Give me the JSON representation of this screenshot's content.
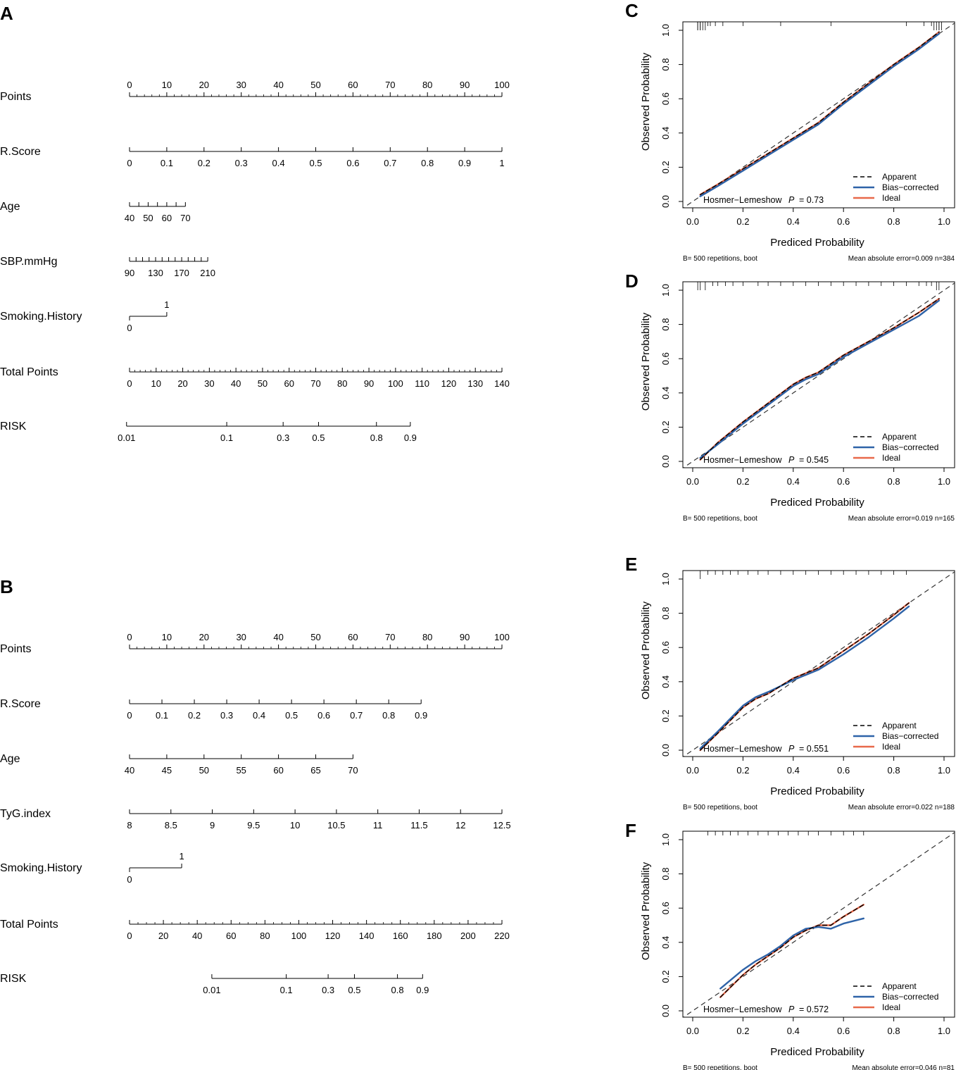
{
  "chart_data": [
    {
      "panel": "A",
      "type": "nomogram",
      "rows": [
        {
          "label": "Points",
          "ticks": [
            0,
            10,
            20,
            30,
            40,
            50,
            60,
            70,
            80,
            90,
            100
          ],
          "tick_labels": [
            "0",
            "10",
            "20",
            "30",
            "40",
            "50",
            "60",
            "70",
            "80",
            "90",
            "100"
          ],
          "points_range": [
            0,
            100
          ],
          "labels_above": true,
          "minor_per": 5
        },
        {
          "label": "R.Score",
          "ticks": [
            0,
            0.1,
            0.2,
            0.3,
            0.4,
            0.5,
            0.6,
            0.7,
            0.8,
            0.9,
            1
          ],
          "tick_labels": [
            "0",
            "0.1",
            "0.2",
            "0.3",
            "0.4",
            "0.5",
            "0.6",
            "0.7",
            "0.8",
            "0.9",
            "1"
          ],
          "points_range": [
            0,
            100
          ]
        },
        {
          "label": "Age",
          "ticks": [
            40,
            45,
            50,
            55,
            60,
            65,
            70
          ],
          "tick_labels": [
            "40",
            "",
            "50",
            "",
            "60",
            "",
            "70"
          ],
          "points_range": [
            0,
            15
          ]
        },
        {
          "label": "SBP.mmHg",
          "ticks": [
            90,
            100,
            110,
            120,
            130,
            140,
            150,
            160,
            170,
            180,
            190,
            200,
            210
          ],
          "tick_labels": [
            "90",
            "",
            "",
            "",
            "130",
            "",
            "",
            "",
            "170",
            "",
            "",
            "",
            "210"
          ],
          "points_range": [
            0,
            21
          ]
        },
        {
          "label": "Smoking.History",
          "type": "binary",
          "labels": [
            "0",
            "1"
          ],
          "points_range": [
            0,
            10
          ]
        },
        {
          "label": "Total Points",
          "ticks": [
            0,
            10,
            20,
            30,
            40,
            50,
            60,
            70,
            80,
            90,
            100,
            110,
            120,
            130,
            140
          ],
          "tick_labels": [
            "0",
            "10",
            "20",
            "30",
            "40",
            "50",
            "60",
            "70",
            "80",
            "90",
            "100",
            "110",
            "120",
            "130",
            "140"
          ],
          "points_range": [
            0,
            100
          ],
          "minor_per": 5
        },
        {
          "label": "RISK",
          "ticks": [
            0.01,
            0.1,
            0.3,
            0.5,
            0.8,
            0.9
          ],
          "tick_labels": [
            "0.01",
            "0.1",
            "0.3",
            "0.5",
            "0.8",
            "0.9"
          ],
          "points_range": [
            -0.8,
            75.4
          ]
        }
      ]
    },
    {
      "panel": "B",
      "type": "nomogram",
      "rows": [
        {
          "label": "Points",
          "ticks": [
            0,
            10,
            20,
            30,
            40,
            50,
            60,
            70,
            80,
            90,
            100
          ],
          "tick_labels": [
            "0",
            "10",
            "20",
            "30",
            "40",
            "50",
            "60",
            "70",
            "80",
            "90",
            "100"
          ],
          "points_range": [
            0,
            100
          ],
          "labels_above": true,
          "minor_per": 5
        },
        {
          "label": "R.Score",
          "ticks": [
            0,
            0.1,
            0.2,
            0.3,
            0.4,
            0.5,
            0.6,
            0.7,
            0.8,
            0.9
          ],
          "tick_labels": [
            "0",
            "0.1",
            "0.2",
            "0.3",
            "0.4",
            "0.5",
            "0.6",
            "0.7",
            "0.8",
            "0.9"
          ],
          "points_range": [
            0,
            78.3
          ]
        },
        {
          "label": "Age",
          "ticks": [
            40,
            45,
            50,
            55,
            60,
            65,
            70
          ],
          "tick_labels": [
            "40",
            "45",
            "50",
            "55",
            "60",
            "65",
            "70"
          ],
          "points_range": [
            0,
            60
          ]
        },
        {
          "label": "TyG.index",
          "ticks": [
            8,
            8.5,
            9,
            9.5,
            10,
            10.5,
            11,
            11.5,
            12,
            12.5
          ],
          "tick_labels": [
            "8",
            "8.5",
            "9",
            "9.5",
            "10",
            "10.5",
            "11",
            "11.5",
            "12",
            "12.5"
          ],
          "points_range": [
            0,
            100
          ]
        },
        {
          "label": "Smoking.History",
          "type": "binary",
          "labels": [
            "0",
            "1"
          ],
          "points_range": [
            0,
            14
          ]
        },
        {
          "label": "Total Points",
          "ticks": [
            0,
            20,
            40,
            60,
            80,
            100,
            120,
            140,
            160,
            180,
            200,
            220
          ],
          "tick_labels": [
            "0",
            "20",
            "40",
            "60",
            "80",
            "100",
            "120",
            "140",
            "160",
            "180",
            "200",
            "220"
          ],
          "points_range": [
            0,
            100
          ],
          "minor_per": 4
        },
        {
          "label": "RISK",
          "ticks": [
            0.01,
            0.1,
            0.3,
            0.5,
            0.8,
            0.9
          ],
          "tick_labels": [
            "0.01",
            "0.1",
            "0.3",
            "0.5",
            "0.8",
            "0.9"
          ],
          "points_range": [
            22.1,
            78.7
          ]
        }
      ]
    },
    {
      "panel": "C",
      "type": "line",
      "xlabel": "Prediced Probability",
      "ylabel": "Observed Probability",
      "xlim": [
        0,
        1
      ],
      "ylim": [
        0,
        1
      ],
      "ticks": [
        "0.0",
        "0.2",
        "0.4",
        "0.6",
        "0.8",
        "1.0"
      ],
      "hl_text": "Hosmer−Lemeshow",
      "p_label": "P",
      "p_value": "= 0.73",
      "note_left": "B= 500 repetitions, boot",
      "note_right": "Mean absolute error=0.009 n=384",
      "series": [
        {
          "name": "Apparent",
          "style": "dashed",
          "color": "#000000",
          "x": [
            0.03,
            0.1,
            0.2,
            0.3,
            0.4,
            0.5,
            0.6,
            0.7,
            0.8,
            0.9,
            0.98
          ],
          "y": [
            0.04,
            0.1,
            0.19,
            0.28,
            0.37,
            0.46,
            0.58,
            0.69,
            0.8,
            0.9,
            0.99
          ]
        },
        {
          "name": "Bias−corrected",
          "style": "solid",
          "color": "#2e63a8",
          "x": [
            0.03,
            0.1,
            0.2,
            0.3,
            0.4,
            0.5,
            0.6,
            0.7,
            0.8,
            0.9,
            0.98
          ],
          "y": [
            0.03,
            0.09,
            0.18,
            0.27,
            0.36,
            0.45,
            0.57,
            0.68,
            0.79,
            0.89,
            0.98
          ]
        },
        {
          "name": "Ideal",
          "style": "solid",
          "color": "#e8694a",
          "x": [
            0.03,
            0.1,
            0.2,
            0.3,
            0.4,
            0.5,
            0.6,
            0.7,
            0.8,
            0.9,
            0.98
          ],
          "y": [
            0.04,
            0.1,
            0.19,
            0.28,
            0.37,
            0.46,
            0.58,
            0.69,
            0.8,
            0.9,
            0.99
          ]
        }
      ],
      "legend": [
        "Apparent",
        "Bias−corrected",
        "Ideal"
      ],
      "rug": [
        0.02,
        0.02,
        0.03,
        0.03,
        0.04,
        0.05,
        0.06,
        0.07,
        0.09,
        0.12,
        0.2,
        0.35,
        0.55,
        0.85,
        0.92,
        0.95,
        0.96,
        0.97,
        0.98,
        0.98,
        0.99
      ]
    },
    {
      "panel": "D",
      "type": "line",
      "xlabel": "Prediced Probability",
      "ylabel": "Observed Probability",
      "xlim": [
        0,
        1
      ],
      "ylim": [
        0,
        1
      ],
      "ticks": [
        "0.0",
        "0.2",
        "0.4",
        "0.6",
        "0.8",
        "1.0"
      ],
      "hl_text": "Hosmer−Lemeshow",
      "p_label": "P",
      "p_value": "= 0.545",
      "note_left": "B= 500 repetitions, boot",
      "note_right": "Mean absolute error=0.019 n=165",
      "series": [
        {
          "name": "Apparent",
          "style": "dashed",
          "color": "#000000",
          "x": [
            0.03,
            0.1,
            0.2,
            0.3,
            0.4,
            0.45,
            0.5,
            0.6,
            0.7,
            0.8,
            0.9,
            0.98
          ],
          "y": [
            0.01,
            0.11,
            0.23,
            0.34,
            0.45,
            0.49,
            0.52,
            0.62,
            0.7,
            0.78,
            0.87,
            0.95
          ]
        },
        {
          "name": "Bias−corrected",
          "style": "solid",
          "color": "#2e63a8",
          "x": [
            0.03,
            0.1,
            0.2,
            0.3,
            0.4,
            0.45,
            0.5,
            0.6,
            0.7,
            0.8,
            0.9,
            0.98
          ],
          "y": [
            0.02,
            0.1,
            0.22,
            0.33,
            0.44,
            0.48,
            0.51,
            0.61,
            0.69,
            0.77,
            0.85,
            0.94
          ]
        },
        {
          "name": "Ideal",
          "style": "solid",
          "color": "#e8694a",
          "x": [
            0.03,
            0.1,
            0.2,
            0.3,
            0.4,
            0.45,
            0.5,
            0.6,
            0.7,
            0.8,
            0.9,
            0.98
          ],
          "y": [
            0.01,
            0.11,
            0.23,
            0.34,
            0.45,
            0.49,
            0.52,
            0.62,
            0.7,
            0.78,
            0.87,
            0.95
          ]
        }
      ],
      "legend": [
        "Apparent",
        "Bias−corrected",
        "Ideal"
      ],
      "rug": [
        0.02,
        0.03,
        0.05,
        0.08,
        0.1,
        0.13,
        0.16,
        0.2,
        0.26,
        0.3,
        0.35,
        0.4,
        0.45,
        0.5,
        0.55,
        0.6,
        0.65,
        0.7,
        0.75,
        0.8,
        0.85,
        0.9,
        0.93,
        0.95,
        0.97,
        0.98
      ]
    },
    {
      "panel": "E",
      "type": "line",
      "xlabel": "Prediced Probability",
      "ylabel": "Observed Probability",
      "xlim": [
        0,
        1
      ],
      "ylim": [
        0,
        1
      ],
      "ticks": [
        "0.0",
        "0.2",
        "0.4",
        "0.6",
        "0.8",
        "1.0"
      ],
      "hl_text": "Hosmer−Lemeshow",
      "p_label": "P",
      "p_value": "= 0.551",
      "note_left": "B= 500 repetitions, boot",
      "note_right": "Mean absolute error=0.022 n=188",
      "series": [
        {
          "name": "Apparent",
          "style": "dashed",
          "color": "#000000",
          "x": [
            0.03,
            0.1,
            0.2,
            0.25,
            0.3,
            0.4,
            0.5,
            0.6,
            0.7,
            0.8,
            0.86
          ],
          "y": [
            0.0,
            0.1,
            0.25,
            0.3,
            0.33,
            0.42,
            0.48,
            0.58,
            0.68,
            0.79,
            0.86
          ]
        },
        {
          "name": "Bias−corrected",
          "style": "solid",
          "color": "#2e63a8",
          "x": [
            0.03,
            0.1,
            0.2,
            0.25,
            0.3,
            0.4,
            0.5,
            0.6,
            0.7,
            0.8,
            0.86
          ],
          "y": [
            0.01,
            0.11,
            0.26,
            0.31,
            0.34,
            0.41,
            0.47,
            0.56,
            0.66,
            0.77,
            0.84
          ]
        },
        {
          "name": "Ideal",
          "style": "solid",
          "color": "#e8694a",
          "x": [
            0.03,
            0.1,
            0.2,
            0.25,
            0.3,
            0.4,
            0.5,
            0.6,
            0.7,
            0.8,
            0.86
          ],
          "y": [
            0.0,
            0.1,
            0.25,
            0.3,
            0.33,
            0.42,
            0.48,
            0.58,
            0.68,
            0.79,
            0.86
          ]
        }
      ],
      "legend": [
        "Apparent",
        "Bias−corrected",
        "Ideal"
      ],
      "rug": [
        0.03,
        0.06,
        0.09,
        0.12,
        0.15,
        0.18,
        0.22,
        0.26,
        0.3,
        0.35,
        0.4,
        0.45,
        0.5,
        0.55,
        0.6,
        0.65,
        0.7,
        0.75,
        0.8,
        0.85
      ]
    },
    {
      "panel": "F",
      "type": "line",
      "xlabel": "Prediced Probability",
      "ylabel": "Observed Probability",
      "xlim": [
        0,
        1
      ],
      "ylim": [
        0,
        1
      ],
      "ticks": [
        "0.0",
        "0.2",
        "0.4",
        "0.6",
        "0.8",
        "1.0"
      ],
      "hl_text": "Hosmer−Lemeshow",
      "p_label": "P",
      "p_value": "= 0.572",
      "note_left": "B= 500 repetitions, boot",
      "note_right": "Mean absolute error=0.046 n=81",
      "series": [
        {
          "name": "Apparent",
          "style": "dashed",
          "color": "#000000",
          "x": [
            0.11,
            0.2,
            0.25,
            0.3,
            0.35,
            0.4,
            0.45,
            0.5,
            0.55,
            0.6,
            0.68
          ],
          "y": [
            0.08,
            0.21,
            0.27,
            0.32,
            0.37,
            0.43,
            0.47,
            0.5,
            0.5,
            0.55,
            0.62
          ]
        },
        {
          "name": "Bias−corrected",
          "style": "solid",
          "color": "#2e63a8",
          "x": [
            0.11,
            0.2,
            0.25,
            0.3,
            0.35,
            0.4,
            0.45,
            0.5,
            0.55,
            0.6,
            0.68
          ],
          "y": [
            0.13,
            0.24,
            0.29,
            0.33,
            0.38,
            0.44,
            0.48,
            0.49,
            0.48,
            0.51,
            0.54
          ]
        },
        {
          "name": "Ideal",
          "style": "solid",
          "color": "#e8694a",
          "x": [
            0.11,
            0.2,
            0.25,
            0.3,
            0.35,
            0.4,
            0.45,
            0.5,
            0.55,
            0.6,
            0.68
          ],
          "y": [
            0.08,
            0.21,
            0.27,
            0.32,
            0.37,
            0.43,
            0.47,
            0.5,
            0.5,
            0.55,
            0.62
          ]
        }
      ],
      "legend": [
        "Apparent",
        "Bias−corrected",
        "Ideal"
      ],
      "rug": [
        0.06,
        0.09,
        0.12,
        0.15,
        0.18,
        0.22,
        0.26,
        0.3,
        0.34,
        0.38,
        0.42,
        0.46,
        0.5,
        0.55,
        0.6,
        0.64,
        0.68
      ]
    }
  ]
}
